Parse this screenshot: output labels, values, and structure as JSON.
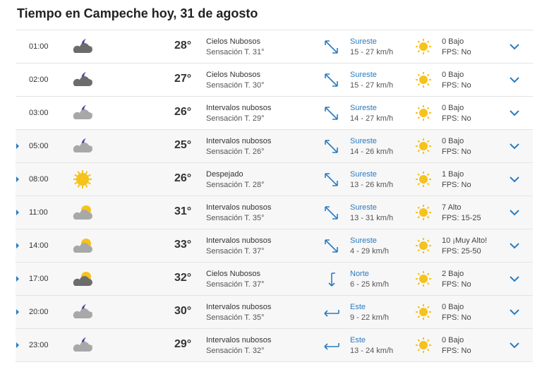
{
  "page": {
    "title": "Tiempo en Campeche hoy, 31 de agosto"
  },
  "colors": {
    "accent": "#2a7bc0",
    "sun": "#f6c21c",
    "cloud": "#a8a8a8",
    "cloud_dark": "#6c6c6c",
    "moon": "#5b3fa0"
  },
  "rows": [
    {
      "hour": "01:00",
      "icon": "cloudy-night-dark-icon",
      "temp": "28°",
      "cond": "Cielos Nubosos",
      "feels": "Sensación T. 31°",
      "wind_icon": "wind-southeast-icon",
      "wind_dir": "Sureste",
      "wind_speed": "15 - 27 km/h",
      "uv": "0 Bajo",
      "fps": "FPS: No",
      "caret": false,
      "alt": false
    },
    {
      "hour": "02:00",
      "icon": "cloudy-night-dark-icon",
      "temp": "27°",
      "cond": "Cielos Nubosos",
      "feels": "Sensación T. 30°",
      "wind_icon": "wind-southeast-icon",
      "wind_dir": "Sureste",
      "wind_speed": "15 - 27 km/h",
      "uv": "0 Bajo",
      "fps": "FPS: No",
      "caret": false,
      "alt": false
    },
    {
      "hour": "03:00",
      "icon": "partly-cloudy-night-icon",
      "temp": "26°",
      "cond": "Intervalos nubosos",
      "feels": "Sensación T. 29°",
      "wind_icon": "wind-southeast-icon",
      "wind_dir": "Sureste",
      "wind_speed": "14 - 27 km/h",
      "uv": "0 Bajo",
      "fps": "FPS: No",
      "caret": false,
      "alt": false
    },
    {
      "hour": "05:00",
      "icon": "partly-cloudy-night-icon",
      "temp": "25°",
      "cond": "Intervalos nubosos",
      "feels": "Sensación T. 26°",
      "wind_icon": "wind-southeast-icon",
      "wind_dir": "Sureste",
      "wind_speed": "14 - 26 km/h",
      "uv": "0 Bajo",
      "fps": "FPS: No",
      "caret": true,
      "alt": true
    },
    {
      "hour": "08:00",
      "icon": "sun-icon",
      "temp": "26°",
      "cond": "Despejado",
      "feels": "Sensación T. 28°",
      "wind_icon": "wind-southeast-icon",
      "wind_dir": "Sureste",
      "wind_speed": "13 - 26 km/h",
      "uv": "1 Bajo",
      "fps": "FPS: No",
      "caret": true,
      "alt": true
    },
    {
      "hour": "11:00",
      "icon": "partly-cloudy-day-icon",
      "temp": "31°",
      "cond": "Intervalos nubosos",
      "feels": "Sensación T. 35°",
      "wind_icon": "wind-southeast-icon",
      "wind_dir": "Sureste",
      "wind_speed": "13 - 31 km/h",
      "uv": "7 Alto",
      "fps": "FPS: 15-25",
      "caret": true,
      "alt": true
    },
    {
      "hour": "14:00",
      "icon": "partly-cloudy-day-icon",
      "temp": "33°",
      "cond": "Intervalos nubosos",
      "feels": "Sensación T. 37°",
      "wind_icon": "wind-southeast-icon",
      "wind_dir": "Sureste",
      "wind_speed": "4 - 29 km/h",
      "uv": "10 ¡Muy Alto!",
      "fps": "FPS: 25-50",
      "caret": true,
      "alt": true
    },
    {
      "hour": "17:00",
      "icon": "cloudy-day-dark-icon",
      "temp": "32°",
      "cond": "Cielos Nubosos",
      "feels": "Sensación T. 37°",
      "wind_icon": "wind-north-icon",
      "wind_dir": "Norte",
      "wind_speed": "6 - 25 km/h",
      "uv": "2 Bajo",
      "fps": "FPS: No",
      "caret": true,
      "alt": true
    },
    {
      "hour": "20:00",
      "icon": "partly-cloudy-night-icon",
      "temp": "30°",
      "cond": "Intervalos nubosos",
      "feels": "Sensación T. 35°",
      "wind_icon": "wind-east-icon",
      "wind_dir": "Este",
      "wind_speed": "9 - 22 km/h",
      "uv": "0 Bajo",
      "fps": "FPS: No",
      "caret": true,
      "alt": true
    },
    {
      "hour": "23:00",
      "icon": "partly-cloudy-night-icon",
      "temp": "29°",
      "cond": "Intervalos nubosos",
      "feels": "Sensación T. 32°",
      "wind_icon": "wind-east-icon",
      "wind_dir": "Este",
      "wind_speed": "13 - 24 km/h",
      "uv": "0 Bajo",
      "fps": "FPS: No",
      "caret": true,
      "alt": true
    }
  ]
}
